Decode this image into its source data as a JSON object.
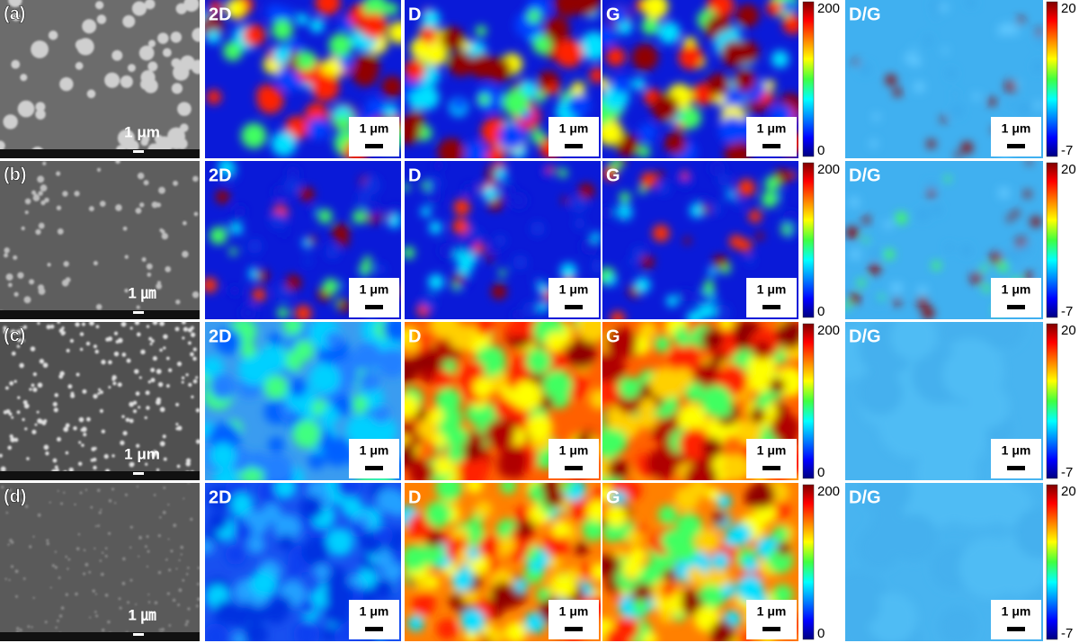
{
  "figure": {
    "rows": [
      {
        "label": "(a)",
        "sem_scale": "1 μm",
        "maps": [
          {
            "label": "2D",
            "scale": "1 μm"
          },
          {
            "label": "D",
            "scale": "1 μm"
          },
          {
            "label": "G",
            "scale": "1 μm"
          }
        ],
        "colorbar": {
          "max": 200,
          "min": 0
        },
        "ratio": {
          "label": "D/G",
          "scale": "1 μm",
          "colorbar": {
            "max": 20,
            "min": -7
          }
        }
      },
      {
        "label": "(b)",
        "sem_scale": "1 ㎛",
        "maps": [
          {
            "label": "2D",
            "scale": "1 μm"
          },
          {
            "label": "D",
            "scale": "1 μm"
          },
          {
            "label": "G",
            "scale": "1 μm"
          }
        ],
        "colorbar": {
          "max": 200,
          "min": 0
        },
        "ratio": {
          "label": "D/G",
          "scale": "1 μm",
          "colorbar": {
            "max": 20,
            "min": -7
          }
        }
      },
      {
        "label": "(c)",
        "sem_scale": "1 μm",
        "maps": [
          {
            "label": "2D",
            "scale": "1 μm"
          },
          {
            "label": "D",
            "scale": "1 μm"
          },
          {
            "label": "G",
            "scale": "1 μm"
          }
        ],
        "colorbar": {
          "max": 200,
          "min": 0
        },
        "ratio": {
          "label": "D/G",
          "scale": "1 μm",
          "colorbar": {
            "max": 20,
            "min": -7
          }
        }
      },
      {
        "label": "(d)",
        "sem_scale": "1 ㎛",
        "maps": [
          {
            "label": "2D",
            "scale": "1 μm"
          },
          {
            "label": "D",
            "scale": "1 μm"
          },
          {
            "label": "G",
            "scale": "1 μm"
          }
        ],
        "colorbar": {
          "max": 200,
          "min": 0
        },
        "ratio": {
          "label": "D/G",
          "scale": "1 μm",
          "colorbar": {
            "max": 20,
            "min": -7
          }
        }
      }
    ]
  }
}
